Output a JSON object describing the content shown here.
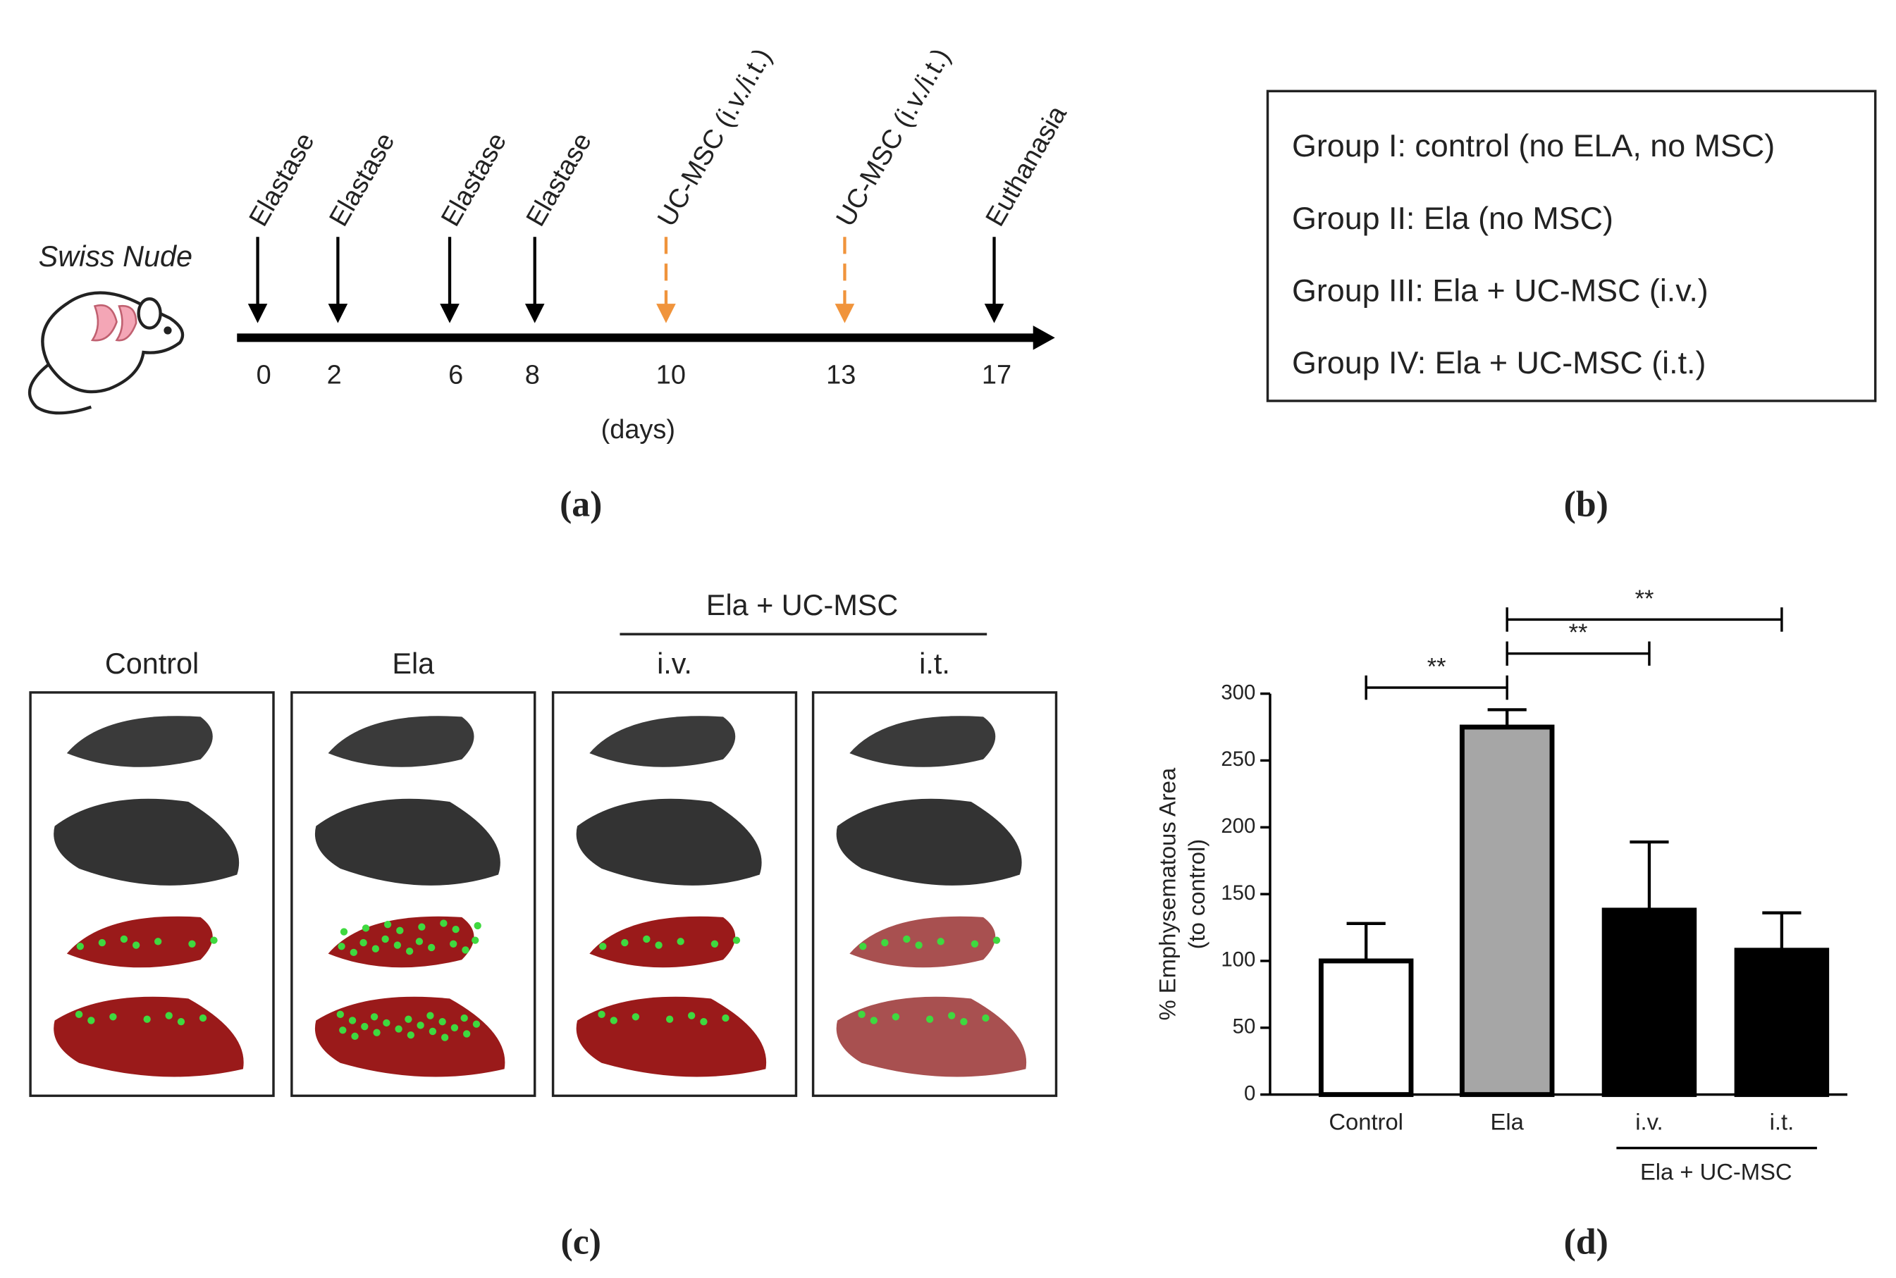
{
  "timeline": {
    "subject": "Swiss Nude",
    "events": [
      {
        "label": "Elastase",
        "color": "#000000",
        "dashed": false
      },
      {
        "label": "Elastase",
        "color": "#000000",
        "dashed": false
      },
      {
        "label": "Elastase",
        "color": "#000000",
        "dashed": false
      },
      {
        "label": "Elastase",
        "color": "#000000",
        "dashed": false
      },
      {
        "label": "UC-MSC (i.v./i.t.)",
        "color": "#f0943c",
        "dashed": true
      },
      {
        "label": "UC-MSC (i.v./i.t.)",
        "color": "#f0943c",
        "dashed": true
      },
      {
        "label": "Euthanasia",
        "color": "#000000",
        "dashed": false
      }
    ],
    "days": [
      0,
      2,
      6,
      8,
      10,
      13,
      17
    ],
    "axis_label": "(days)",
    "panel_label": "(a)"
  },
  "groups": {
    "lines": [
      "Group I: control (no ELA, no MSC)",
      "Group II: Ela (no MSC)",
      "Group III: Ela + UC-MSC (i.v.)",
      "Group IV: Ela + UC-MSC (i.t.)"
    ],
    "panel_label": "(b)"
  },
  "images": {
    "labels": [
      "Control",
      "Ela",
      "i.v.",
      "i.t."
    ],
    "group_label": "Ela + UC-MSC",
    "panel_label": "(c)"
  },
  "chart_data": {
    "type": "bar",
    "ylabel": [
      "% Emphysematous Area",
      "(to control)"
    ],
    "categories": [
      "Control",
      "Ela",
      "i.v.",
      "i.t."
    ],
    "group_label": "Ela + UC-MSC",
    "values": [
      100,
      275,
      138,
      108
    ],
    "errors": [
      28,
      13,
      51,
      28
    ],
    "colors": [
      "#ffffff",
      "#a6a6a6",
      "#000000",
      "#000000"
    ],
    "ylim": [
      0,
      300
    ],
    "yticks": [
      0,
      50,
      100,
      150,
      200,
      250,
      300
    ],
    "significance": [
      "**",
      "**",
      "**"
    ],
    "panel_label": "(d)"
  }
}
